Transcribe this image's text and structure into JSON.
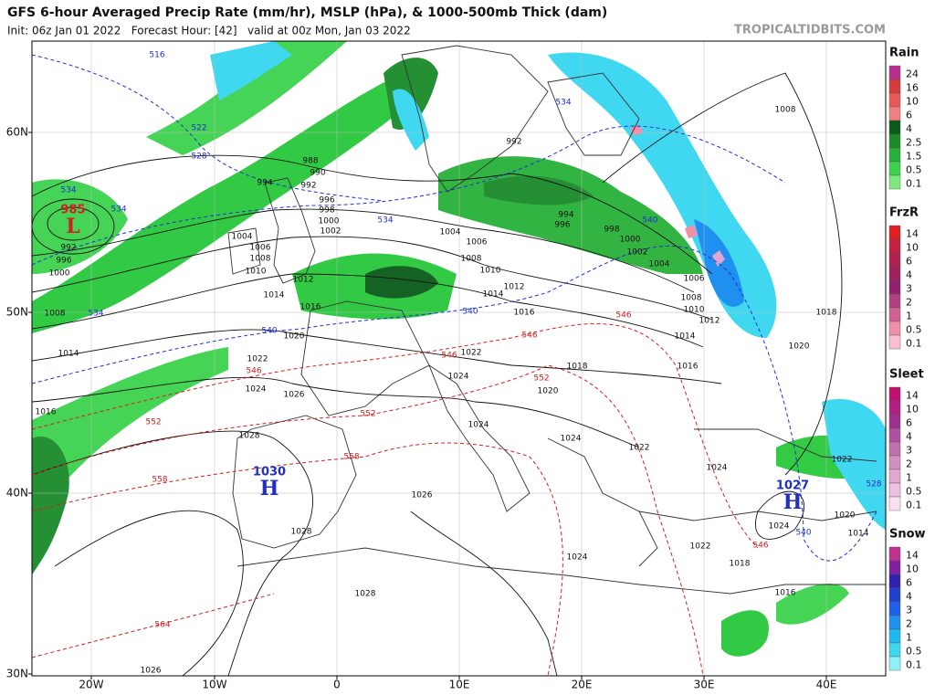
{
  "header": {
    "title": "GFS 6-hour Averaged Precip Rate (mm/hr), MSLP (hPa), & 1000-500mb Thick (dam)",
    "subtitle": "Init: 06z Jan 01 2022   Forecast Hour: [42]   valid at 00z Mon, Jan 03 2022",
    "watermark": "TROPICALTIDBITS.COM"
  },
  "axes": {
    "latitudes": [
      "60N",
      "50N",
      "40N",
      "30N"
    ],
    "longitudes": [
      "20W",
      "10W",
      "0",
      "10E",
      "20E",
      "30E",
      "40E"
    ]
  },
  "legend": [
    {
      "title": "Rain",
      "labels": [
        "24",
        "16",
        "10",
        "6",
        "4",
        "2.5",
        "1.5",
        "0.5",
        "0.1"
      ],
      "colors": [
        "#b8308f",
        "#d63a3a",
        "#e85a5a",
        "#f08080",
        "#0a5a1a",
        "#1a8a2a",
        "#28b038",
        "#3cd24c",
        "#7fe87f"
      ]
    },
    {
      "title": "FrzR",
      "labels": [
        "14",
        "10",
        "6",
        "4",
        "3",
        "2",
        "1",
        "0.5",
        "0.1"
      ],
      "colors": [
        "#e02020",
        "#c82040",
        "#b02050",
        "#a02060",
        "#902070",
        "#b04080",
        "#d06090",
        "#f090a8",
        "#f8c0d0"
      ]
    },
    {
      "title": "Sleet",
      "labels": [
        "14",
        "10",
        "6",
        "4",
        "3",
        "2",
        "1",
        "0.5",
        "0.1"
      ],
      "colors": [
        "#c01070",
        "#b02080",
        "#a03090",
        "#b050a0",
        "#c070b0",
        "#d090c0",
        "#e0a8d0",
        "#ecc0e0",
        "#f8e0f0"
      ]
    },
    {
      "title": "Snow",
      "labels": [
        "14",
        "10",
        "6",
        "4",
        "3",
        "2",
        "1",
        "0.5",
        "0.1"
      ],
      "colors": [
        "#c03090",
        "#8020a0",
        "#3020b0",
        "#2040d0",
        "#2060e8",
        "#2090f0",
        "#20b8f0",
        "#40d8f0",
        "#90f0f8"
      ]
    }
  ],
  "pressure_centers": [
    {
      "value": "985",
      "symbol": "L"
    },
    {
      "value": "1030",
      "symbol": "H"
    },
    {
      "value": "1027",
      "symbol": "H"
    }
  ],
  "isobar_labels": [
    "992",
    "996",
    "1000",
    "1008",
    "1014",
    "1016",
    "988",
    "990",
    "992",
    "994",
    "996",
    "998",
    "1000",
    "1002",
    "1004",
    "1006",
    "1008",
    "1010",
    "1012",
    "1014",
    "1016",
    "1020",
    "1022",
    "1024",
    "1026",
    "1028",
    "1028",
    "1026",
    "1024",
    "1024",
    "1022",
    "1020",
    "1018",
    "1016",
    "1014",
    "1012",
    "1010",
    "1008",
    "1006",
    "1004",
    "994",
    "996",
    "998",
    "1000",
    "1002",
    "1004",
    "1006",
    "1008",
    "1010",
    "1012",
    "1014",
    "1016",
    "1018",
    "1020",
    "1022",
    "1024",
    "1024",
    "1020",
    "1014",
    "1018",
    "1016",
    "1022",
    "1024",
    "1024",
    "1022",
    "1028",
    "1026",
    "992",
    "1008"
  ],
  "thickness_labels": [
    "516",
    "522",
    "528",
    "534",
    "534",
    "534",
    "534",
    "534",
    "540",
    "540",
    "540",
    "540",
    "546",
    "546",
    "546",
    "546",
    "546",
    "552",
    "552",
    "552",
    "558",
    "558",
    "564",
    "528"
  ]
}
